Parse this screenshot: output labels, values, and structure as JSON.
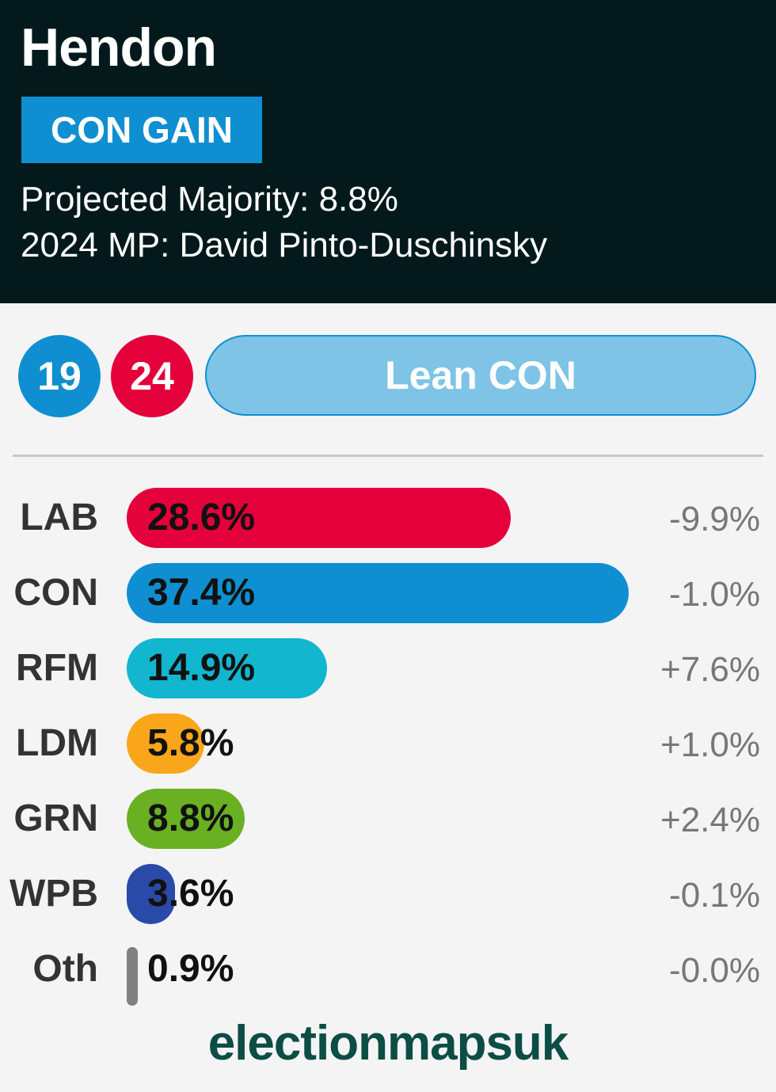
{
  "header": {
    "title": "Hendon",
    "status_badge": "CON GAIN",
    "projected_majority": "Projected Majority: 8.8%",
    "mp_line": "2024 MP: David Pinto-Duschinsky"
  },
  "seats": {
    "con_seats": "19",
    "lab_seats": "24",
    "rating": "Lean CON"
  },
  "colors": {
    "header_bg": "#03191b",
    "con": "#0f8fd1",
    "lab": "#e4003b",
    "rfm": "#12b6cf",
    "ldm": "#faa61a",
    "grn": "#6ab023",
    "wpb": "#2a4aa8",
    "oth": "#808080",
    "rating_fill": "#7fc4e6",
    "brand": "#0c4d46"
  },
  "chart_data": {
    "type": "bar",
    "orientation": "horizontal",
    "categories": [
      "LAB",
      "CON",
      "RFM",
      "LDM",
      "GRN",
      "WPB",
      "Oth"
    ],
    "values": [
      28.6,
      37.4,
      14.9,
      5.8,
      8.8,
      3.6,
      0.9
    ],
    "value_labels": [
      "28.6%",
      "37.4%",
      "14.9%",
      "5.8%",
      "8.8%",
      "3.6%",
      "0.9%"
    ],
    "changes": [
      "-9.9%",
      "-1.0%",
      "+7.6%",
      "+1.0%",
      "+2.4%",
      "-0.1%",
      "-0.0%"
    ],
    "bar_colors": [
      "#e4003b",
      "#0f8fd1",
      "#12b6cf",
      "#faa61a",
      "#6ab023",
      "#2a4aa8",
      "#808080"
    ],
    "xlim": [
      0,
      37.4
    ]
  },
  "footer": {
    "brand": "electionmapsuk"
  }
}
